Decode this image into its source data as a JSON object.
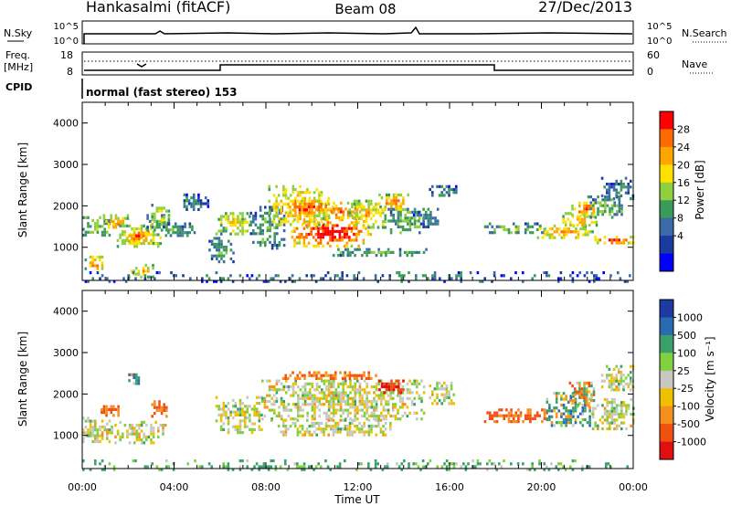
{
  "header": {
    "station": "Hankasalmi (fitACF)",
    "beam": "Beam 08",
    "date": "27/Dec/2013"
  },
  "top_panels": {
    "nsky": {
      "label": "N.Sky",
      "ticks": [
        "10^5",
        "10^0"
      ]
    },
    "nsearch": {
      "label": "N.Search",
      "ticks": [
        "10^5",
        "10^0"
      ]
    },
    "freq": {
      "label_line1": "Freq.",
      "label_line2": "[MHz]",
      "ticks": [
        "18",
        "8"
      ]
    },
    "nave": {
      "label": "Nave",
      "ticks": [
        "60",
        "0"
      ]
    },
    "cpid": {
      "label": "CPID",
      "mode": "normal (fast stereo) 153"
    }
  },
  "chart_data": [
    {
      "type": "heatmap",
      "title": "",
      "ylabel": "Slant Range [km]",
      "xlabel": "",
      "xlim": [
        0,
        24
      ],
      "ylim": [
        200,
        4500
      ],
      "yticks": [
        "1000",
        "2000",
        "3000",
        "4000"
      ],
      "colorbar": {
        "label": "Power [dB]",
        "ticks": [
          "28",
          "24",
          "20",
          "16",
          "12",
          "8",
          "4"
        ],
        "colors": [
          "#ff0000",
          "#ff6a00",
          "#ffa500",
          "#ffe000",
          "#90d040",
          "#3a9a5a",
          "#3a6aa8",
          "#1a3aa0",
          "#0000ff"
        ]
      },
      "patches": [
        {
          "t0": 0.0,
          "t1": 1.2,
          "r0": 1300,
          "r1": 1750,
          "v": 12
        },
        {
          "t0": 0.1,
          "t1": 0.9,
          "r0": 450,
          "r1": 800,
          "v": 22
        },
        {
          "t0": 0.9,
          "t1": 2.0,
          "r0": 1450,
          "r1": 1800,
          "v": 20
        },
        {
          "t0": 1.5,
          "t1": 3.4,
          "r0": 1000,
          "r1": 1550,
          "v": 18
        },
        {
          "t0": 1.9,
          "t1": 2.8,
          "r0": 1150,
          "r1": 1450,
          "v": 24
        },
        {
          "t0": 2.0,
          "t1": 3.1,
          "r0": 300,
          "r1": 600,
          "v": 18
        },
        {
          "t0": 2.8,
          "t1": 3.8,
          "r0": 1400,
          "r1": 1800,
          "v": 10
        },
        {
          "t0": 3.0,
          "t1": 3.8,
          "r0": 1600,
          "r1": 2050,
          "v": 16
        },
        {
          "t0": 3.5,
          "t1": 4.9,
          "r0": 1250,
          "r1": 1600,
          "v": 8
        },
        {
          "t0": 4.4,
          "t1": 5.5,
          "r0": 1900,
          "r1": 2300,
          "v": 6
        },
        {
          "t0": 5.5,
          "t1": 6.6,
          "r0": 650,
          "r1": 1250,
          "v": 8
        },
        {
          "t0": 5.8,
          "t1": 7.3,
          "r0": 1350,
          "r1": 1850,
          "v": 16
        },
        {
          "t0": 7.3,
          "t1": 8.8,
          "r0": 1000,
          "r1": 2000,
          "v": 8
        },
        {
          "t0": 8.1,
          "t1": 10.7,
          "r0": 1500,
          "r1": 2500,
          "v": 20
        },
        {
          "t0": 8.8,
          "t1": 10.9,
          "r0": 1800,
          "r1": 2150,
          "v": 26
        },
        {
          "t0": 9.1,
          "t1": 12.6,
          "r0": 1050,
          "r1": 1700,
          "v": 28
        },
        {
          "t0": 10.5,
          "t1": 12.1,
          "r0": 1700,
          "r1": 2100,
          "v": 24
        },
        {
          "t0": 11.6,
          "t1": 13.2,
          "r0": 1500,
          "r1": 2150,
          "v": 18
        },
        {
          "t0": 12.9,
          "t1": 14.2,
          "r0": 1900,
          "r1": 2300,
          "v": 22
        },
        {
          "t0": 13.3,
          "t1": 14.9,
          "r0": 1350,
          "r1": 1950,
          "v": 10
        },
        {
          "t0": 14.3,
          "t1": 15.5,
          "r0": 1500,
          "r1": 1950,
          "v": 6
        },
        {
          "t0": 10.9,
          "t1": 15.0,
          "r0": 820,
          "r1": 980,
          "v": 10
        },
        {
          "t0": 15.1,
          "t1": 16.4,
          "r0": 2250,
          "r1": 2500,
          "v": 6
        },
        {
          "t0": 17.5,
          "t1": 20.2,
          "r0": 1350,
          "r1": 1600,
          "v": 10
        },
        {
          "t0": 19.8,
          "t1": 22.2,
          "r0": 1250,
          "r1": 1550,
          "v": 20
        },
        {
          "t0": 20.7,
          "t1": 22.4,
          "r0": 1500,
          "r1": 1850,
          "v": 18
        },
        {
          "t0": 21.3,
          "t1": 22.4,
          "r0": 1800,
          "r1": 2100,
          "v": 24
        },
        {
          "t0": 22.3,
          "t1": 24.0,
          "r0": 1120,
          "r1": 1280,
          "v": 26
        },
        {
          "t0": 22.0,
          "t1": 23.6,
          "r0": 1750,
          "r1": 2250,
          "v": 10
        },
        {
          "t0": 22.6,
          "t1": 24.0,
          "r0": 2150,
          "r1": 2700,
          "v": 6
        },
        {
          "t0": 0.0,
          "t1": 24.0,
          "r0": 200,
          "r1": 420,
          "v": 5
        }
      ]
    },
    {
      "type": "heatmap",
      "title": "",
      "ylabel": "Slant Range [km]",
      "xlabel": "Time UT",
      "xlim": [
        0,
        24
      ],
      "ylim": [
        200,
        4500
      ],
      "yticks": [
        "1000",
        "2000",
        "3000",
        "4000"
      ],
      "xticks": [
        "00:00",
        "04:00",
        "08:00",
        "12:00",
        "16:00",
        "20:00",
        "00:00"
      ],
      "colorbar": {
        "label": "Velocity [m s⁻¹]",
        "ticks": [
          "1000",
          "500",
          "100",
          "25",
          "-25",
          "-100",
          "-500",
          "-1000"
        ],
        "colors": [
          "#1c3aa0",
          "#2a6ab0",
          "#3aa06a",
          "#80d040",
          "#c8c8c0",
          "#f0c000",
          "#f59020",
          "#f05010",
          "#e01010"
        ]
      },
      "patches": [
        {
          "t0": 0.0,
          "t1": 1.4,
          "r0": 850,
          "r1": 1450,
          "v": 0
        },
        {
          "t0": 1.4,
          "t1": 3.6,
          "r0": 850,
          "r1": 1350,
          "v": 0
        },
        {
          "t0": 0.8,
          "t1": 1.6,
          "r0": 1450,
          "r1": 1800,
          "v": -400
        },
        {
          "t0": 3.0,
          "t1": 3.7,
          "r0": 1450,
          "r1": 1850,
          "v": -400
        },
        {
          "t0": 2.0,
          "t1": 2.6,
          "r0": 2200,
          "r1": 2500,
          "v": 120
        },
        {
          "t0": 5.8,
          "t1": 7.8,
          "r0": 1100,
          "r1": 1950,
          "v": 0
        },
        {
          "t0": 7.8,
          "t1": 14.9,
          "r0": 1400,
          "r1": 2350,
          "v": 0
        },
        {
          "t0": 8.2,
          "t1": 13.5,
          "r0": 1000,
          "r1": 1400,
          "v": 0
        },
        {
          "t0": 8.5,
          "t1": 12.8,
          "r0": 2350,
          "r1": 2550,
          "v": -350
        },
        {
          "t0": 12.8,
          "t1": 14.0,
          "r0": 2050,
          "r1": 2350,
          "v": -700
        },
        {
          "t0": 15.1,
          "t1": 16.2,
          "r0": 1800,
          "r1": 2300,
          "v": 0
        },
        {
          "t0": 17.5,
          "t1": 20.2,
          "r0": 1350,
          "r1": 1650,
          "v": -400
        },
        {
          "t0": 20.2,
          "t1": 22.2,
          "r0": 1250,
          "r1": 2050,
          "v": 150
        },
        {
          "t0": 21.2,
          "t1": 22.3,
          "r0": 1700,
          "r1": 2300,
          "v": -150
        },
        {
          "t0": 22.2,
          "t1": 24.0,
          "r0": 1150,
          "r1": 1900,
          "v": 0
        },
        {
          "t0": 22.6,
          "t1": 24.0,
          "r0": 2100,
          "r1": 2700,
          "v": 0
        },
        {
          "t0": 0.0,
          "t1": 24.0,
          "r0": 200,
          "r1": 420,
          "v": 80
        }
      ]
    }
  ]
}
